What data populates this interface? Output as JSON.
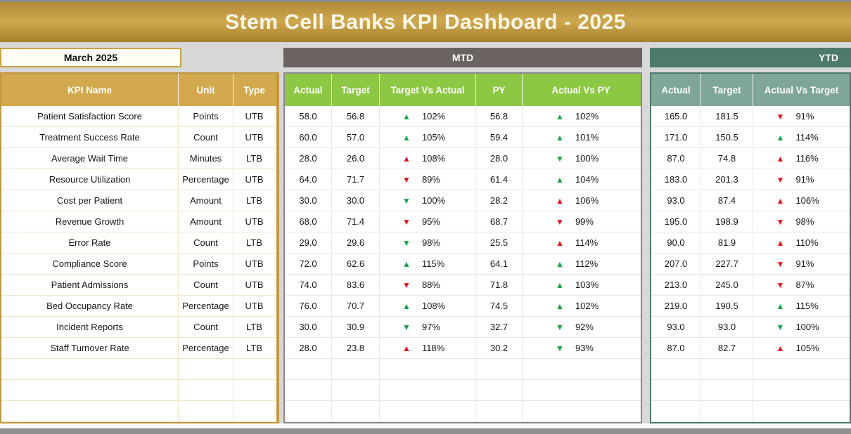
{
  "title": "Stem Cell Banks KPI Dashboard - 2025",
  "month_selector": "March 2025",
  "sections": {
    "mtd_label": "MTD",
    "ytd_label": "YTD"
  },
  "icons": {
    "up": "▲",
    "down": "▼"
  },
  "colors": {
    "title_gold": "#c7a047",
    "header_gold": "#d3a94e",
    "header_green": "#8dc844",
    "header_teal": "#7fa697",
    "bar_gray": "#6b6360",
    "bar_teal": "#4e7a6d",
    "trend_green": "#18a24b",
    "trend_red": "#e1141c"
  },
  "table": {
    "left_headers": [
      "KPI Name",
      "Unit",
      "Type"
    ],
    "mtd_headers": [
      "Actual",
      "Target",
      "Target Vs Actual",
      "PY",
      "Actual Vs PY"
    ],
    "ytd_headers": [
      "Actual",
      "Target",
      "Actual Vs Target"
    ],
    "empty_rows": 3,
    "rows": [
      {
        "kpi": "Patient Satisfaction Score",
        "unit": "Points",
        "type": "UTB",
        "mtd": {
          "actual": "58.0",
          "target": "56.8",
          "target_vs_actual": {
            "dir": "up",
            "color": "green",
            "value": "102%"
          },
          "py": "56.8",
          "actual_vs_py": {
            "dir": "up",
            "color": "green",
            "value": "102%"
          }
        },
        "ytd": {
          "actual": "165.0",
          "target": "181.5",
          "actual_vs_target": {
            "dir": "down",
            "color": "red",
            "value": "91%"
          }
        }
      },
      {
        "kpi": "Treatment Success Rate",
        "unit": "Count",
        "type": "UTB",
        "mtd": {
          "actual": "60.0",
          "target": "57.0",
          "target_vs_actual": {
            "dir": "up",
            "color": "green",
            "value": "105%"
          },
          "py": "59.4",
          "actual_vs_py": {
            "dir": "up",
            "color": "green",
            "value": "101%"
          }
        },
        "ytd": {
          "actual": "171.0",
          "target": "150.5",
          "actual_vs_target": {
            "dir": "up",
            "color": "green",
            "value": "114%"
          }
        }
      },
      {
        "kpi": "Average Wait Time",
        "unit": "Minutes",
        "type": "LTB",
        "mtd": {
          "actual": "28.0",
          "target": "26.0",
          "target_vs_actual": {
            "dir": "up",
            "color": "red",
            "value": "108%"
          },
          "py": "28.0",
          "actual_vs_py": {
            "dir": "down",
            "color": "green",
            "value": "100%"
          }
        },
        "ytd": {
          "actual": "87.0",
          "target": "74.8",
          "actual_vs_target": {
            "dir": "up",
            "color": "red",
            "value": "116%"
          }
        }
      },
      {
        "kpi": "Resource Utilization",
        "unit": "Percentage",
        "type": "UTB",
        "mtd": {
          "actual": "64.0",
          "target": "71.7",
          "target_vs_actual": {
            "dir": "down",
            "color": "red",
            "value": "89%"
          },
          "py": "61.4",
          "actual_vs_py": {
            "dir": "up",
            "color": "green",
            "value": "104%"
          }
        },
        "ytd": {
          "actual": "183.0",
          "target": "201.3",
          "actual_vs_target": {
            "dir": "down",
            "color": "red",
            "value": "91%"
          }
        }
      },
      {
        "kpi": "Cost per Patient",
        "unit": "Amount",
        "type": "LTB",
        "mtd": {
          "actual": "30.0",
          "target": "30.0",
          "target_vs_actual": {
            "dir": "down",
            "color": "green",
            "value": "100%"
          },
          "py": "28.2",
          "actual_vs_py": {
            "dir": "up",
            "color": "red",
            "value": "106%"
          }
        },
        "ytd": {
          "actual": "93.0",
          "target": "87.4",
          "actual_vs_target": {
            "dir": "up",
            "color": "red",
            "value": "106%"
          }
        }
      },
      {
        "kpi": "Revenue Growth",
        "unit": "Amount",
        "type": "UTB",
        "mtd": {
          "actual": "68.0",
          "target": "71.4",
          "target_vs_actual": {
            "dir": "down",
            "color": "red",
            "value": "95%"
          },
          "py": "68.7",
          "actual_vs_py": {
            "dir": "down",
            "color": "red",
            "value": "99%"
          }
        },
        "ytd": {
          "actual": "195.0",
          "target": "198.9",
          "actual_vs_target": {
            "dir": "down",
            "color": "red",
            "value": "98%"
          }
        }
      },
      {
        "kpi": "Error Rate",
        "unit": "Count",
        "type": "LTB",
        "mtd": {
          "actual": "29.0",
          "target": "29.6",
          "target_vs_actual": {
            "dir": "down",
            "color": "green",
            "value": "98%"
          },
          "py": "25.5",
          "actual_vs_py": {
            "dir": "up",
            "color": "red",
            "value": "114%"
          }
        },
        "ytd": {
          "actual": "90.0",
          "target": "81.9",
          "actual_vs_target": {
            "dir": "up",
            "color": "red",
            "value": "110%"
          }
        }
      },
      {
        "kpi": "Compliance Score",
        "unit": "Points",
        "type": "UTB",
        "mtd": {
          "actual": "72.0",
          "target": "62.6",
          "target_vs_actual": {
            "dir": "up",
            "color": "green",
            "value": "115%"
          },
          "py": "64.1",
          "actual_vs_py": {
            "dir": "up",
            "color": "green",
            "value": "112%"
          }
        },
        "ytd": {
          "actual": "207.0",
          "target": "227.7",
          "actual_vs_target": {
            "dir": "down",
            "color": "red",
            "value": "91%"
          }
        }
      },
      {
        "kpi": "Patient Admissions",
        "unit": "Count",
        "type": "UTB",
        "mtd": {
          "actual": "74.0",
          "target": "83.6",
          "target_vs_actual": {
            "dir": "down",
            "color": "red",
            "value": "88%"
          },
          "py": "71.8",
          "actual_vs_py": {
            "dir": "up",
            "color": "green",
            "value": "103%"
          }
        },
        "ytd": {
          "actual": "213.0",
          "target": "245.0",
          "actual_vs_target": {
            "dir": "down",
            "color": "red",
            "value": "87%"
          }
        }
      },
      {
        "kpi": "Bed Occupancy Rate",
        "unit": "Percentage",
        "type": "UTB",
        "mtd": {
          "actual": "76.0",
          "target": "70.7",
          "target_vs_actual": {
            "dir": "up",
            "color": "green",
            "value": "108%"
          },
          "py": "74.5",
          "actual_vs_py": {
            "dir": "up",
            "color": "green",
            "value": "102%"
          }
        },
        "ytd": {
          "actual": "219.0",
          "target": "190.5",
          "actual_vs_target": {
            "dir": "up",
            "color": "green",
            "value": "115%"
          }
        }
      },
      {
        "kpi": "Incident Reports",
        "unit": "Count",
        "type": "LTB",
        "mtd": {
          "actual": "30.0",
          "target": "30.9",
          "target_vs_actual": {
            "dir": "down",
            "color": "green",
            "value": "97%"
          },
          "py": "32.7",
          "actual_vs_py": {
            "dir": "down",
            "color": "green",
            "value": "92%"
          }
        },
        "ytd": {
          "actual": "93.0",
          "target": "93.0",
          "actual_vs_target": {
            "dir": "down",
            "color": "green",
            "value": "100%"
          }
        }
      },
      {
        "kpi": "Staff Turnover Rate",
        "unit": "Percentage",
        "type": "LTB",
        "mtd": {
          "actual": "28.0",
          "target": "23.8",
          "target_vs_actual": {
            "dir": "up",
            "color": "red",
            "value": "118%"
          },
          "py": "30.2",
          "actual_vs_py": {
            "dir": "down",
            "color": "green",
            "value": "93%"
          }
        },
        "ytd": {
          "actual": "87.0",
          "target": "82.7",
          "actual_vs_target": {
            "dir": "up",
            "color": "red",
            "value": "105%"
          }
        }
      }
    ]
  }
}
